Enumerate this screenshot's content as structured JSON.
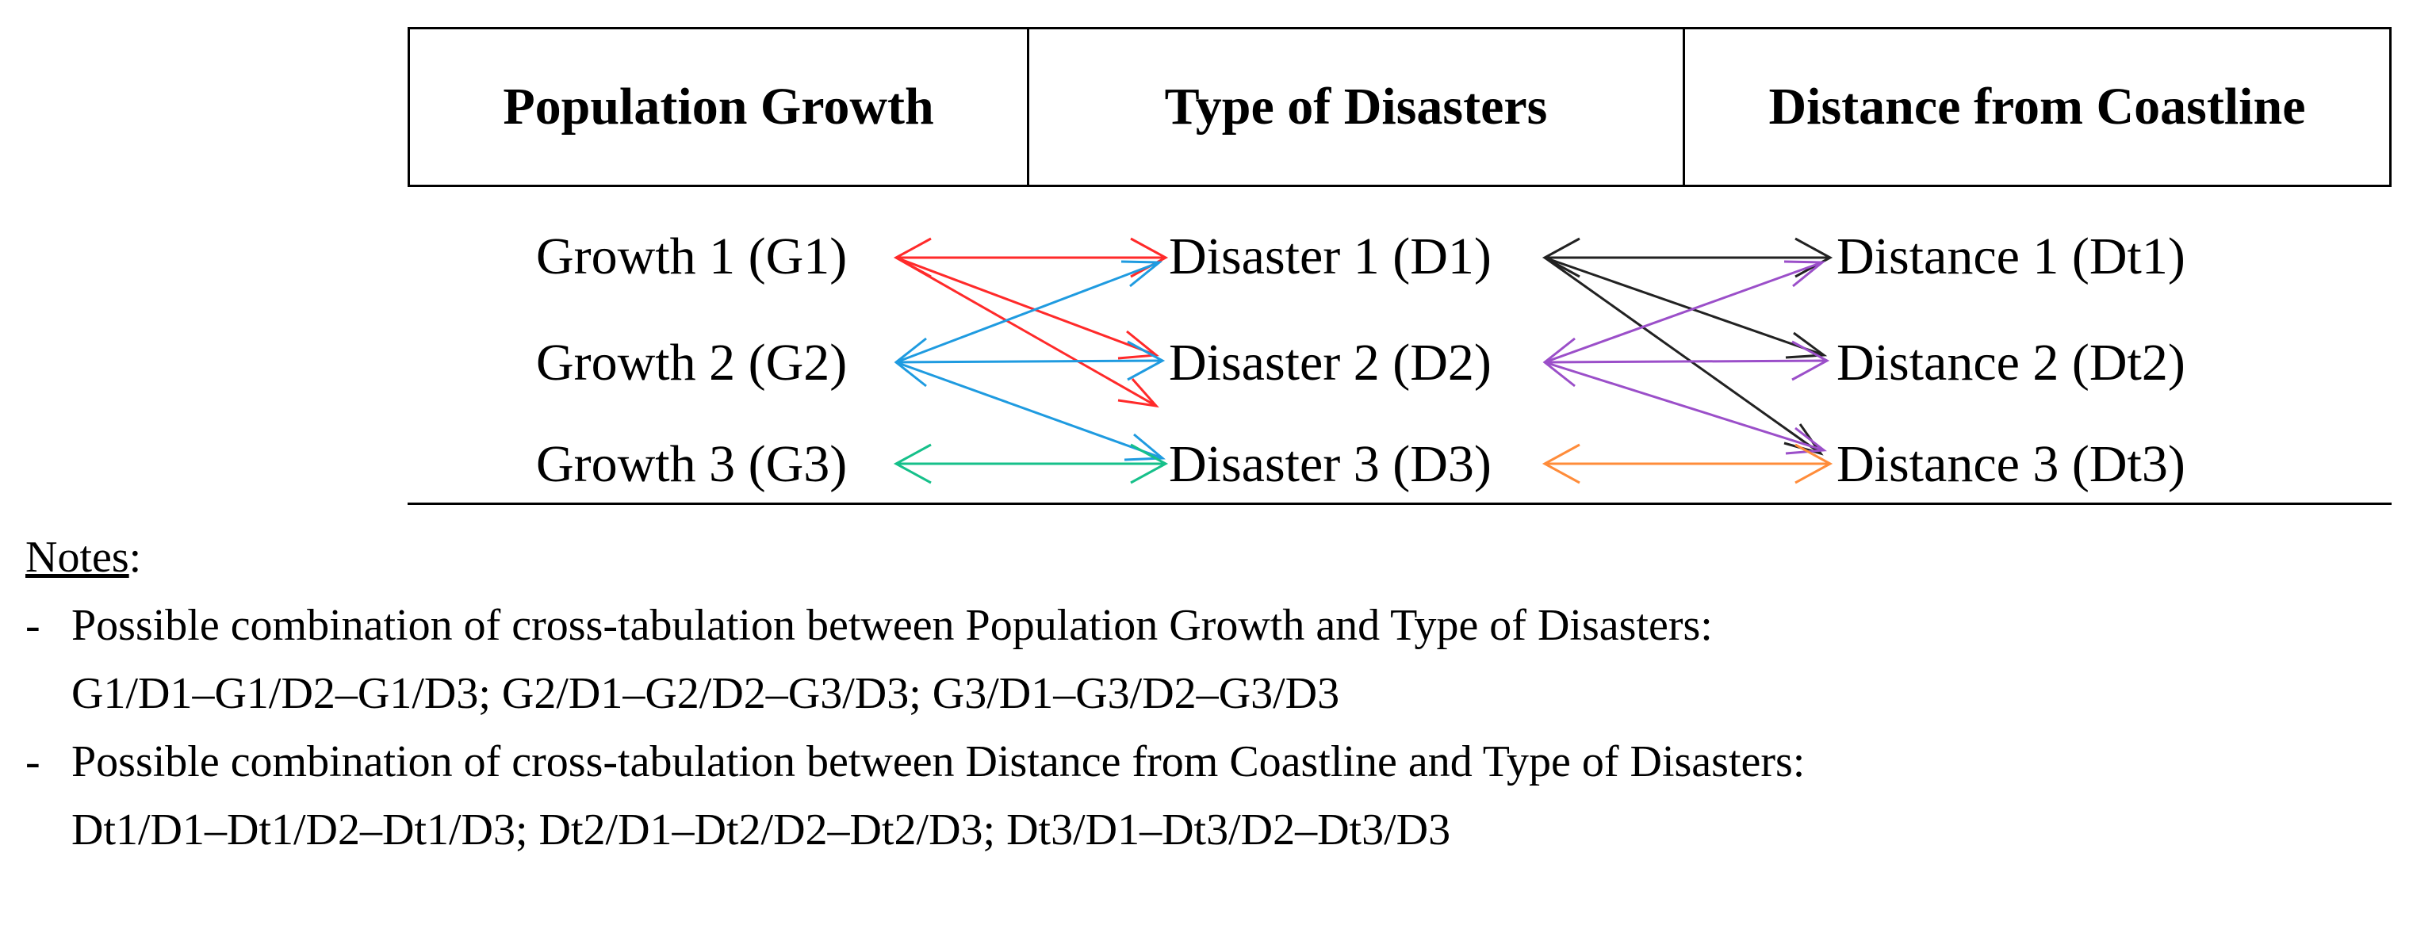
{
  "headers": {
    "population_growth": "Population Growth",
    "type_of_disasters": "Type of Disasters",
    "distance_from_coastline": "Distance from Coastline"
  },
  "growth": [
    "Growth 1 (G1)",
    "Growth 2 (G2)",
    "Growth 3 (G3)"
  ],
  "disasters": [
    "Disaster 1 (D1)",
    "Disaster 2 (D2)",
    "Disaster 3 (D3)"
  ],
  "distances": [
    "Distance 1 (Dt1)",
    "Distance 2 (Dt2)",
    "Distance 3 (Dt3)"
  ],
  "colors": {
    "g1_links": "#ff2a2a",
    "g2_links": "#1f9be0",
    "g3_links": "#16c08a",
    "d1_links": "#222222",
    "d2_links": "#9b4fc9",
    "d3_links": "#ff8c3a"
  },
  "notes": {
    "title": "Notes",
    "title_suffix": ":",
    "bullet": "-",
    "item1_line1": "Possible combination of cross-tabulation between Population Growth and Type of Disasters:",
    "item1_line2": "G1/D1–G1/D2–G1/D3; G2/D1–G2/D2–G3/D3; G3/D1–G3/D2–G3/D3",
    "item2_line1": "Possible combination of cross-tabulation between Distance from Coastline and Type of Disasters:",
    "item2_line2": "Dt1/D1–Dt1/D2–Dt1/D3; Dt2/D1–Dt2/D2–Dt2/D3; Dt3/D1–Dt3/D2–Dt3/D3"
  }
}
